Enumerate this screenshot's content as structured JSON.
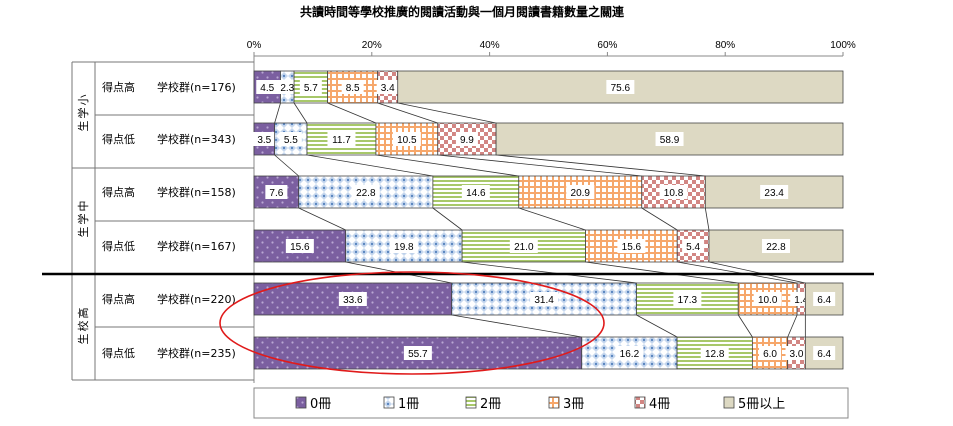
{
  "chart_data": {
    "type": "bar",
    "orientation": "horizontal",
    "stacked": "100%",
    "title": "共讀時間等學校推廣的閱讀活動與一個月閱讀書籍數量之關連",
    "x_ticks": [
      "0%",
      "20%",
      "40%",
      "60%",
      "80%",
      "100%"
    ],
    "xlim": [
      0,
      100
    ],
    "groups": [
      {
        "name": "小学生",
        "rows": [
          0,
          1
        ]
      },
      {
        "name": "中学生",
        "rows": [
          2,
          3
        ]
      },
      {
        "name": "高校生",
        "rows": [
          4,
          5
        ]
      }
    ],
    "categories": [
      {
        "label1": "得点高",
        "label2": "学校群(n=176)"
      },
      {
        "label1": "得点低",
        "label2": "学校群(n=343)"
      },
      {
        "label1": "得点高",
        "label2": "学校群(n=158)"
      },
      {
        "label1": "得点低",
        "label2": "学校群(n=167)"
      },
      {
        "label1": "得点高",
        "label2": "学校群(n=220)"
      },
      {
        "label1": "得点低",
        "label2": "学校群(n=235)"
      }
    ],
    "series": [
      {
        "name": "0冊",
        "color": "#8064a2",
        "pattern": "dots-dark",
        "values": [
          4.5,
          3.5,
          7.6,
          15.6,
          33.6,
          55.7
        ]
      },
      {
        "name": "1冊",
        "color": "#4f81bd",
        "pattern": "diamond-light",
        "values": [
          2.3,
          5.5,
          22.8,
          19.8,
          31.4,
          16.2
        ]
      },
      {
        "name": "2冊",
        "color": "#9bbb59",
        "pattern": "h-stripe",
        "values": [
          5.7,
          11.7,
          14.6,
          21.0,
          17.3,
          12.8
        ]
      },
      {
        "name": "3冊",
        "color": "#f79646",
        "pattern": "grid",
        "values": [
          8.5,
          10.5,
          20.9,
          15.6,
          10.0,
          6.0
        ]
      },
      {
        "name": "4冊",
        "color": "#c0504d",
        "pattern": "checker",
        "values": [
          3.4,
          9.9,
          10.8,
          5.4,
          1.4,
          3.0
        ]
      },
      {
        "name": "5冊以上",
        "color": "#ddd9c3",
        "pattern": "solid",
        "values": [
          75.6,
          58.9,
          23.4,
          22.8,
          6.4,
          6.4
        ]
      }
    ],
    "value_labels": [
      [
        "4.5",
        "2.3",
        "5.7",
        "8.5",
        "3.4",
        "75.6"
      ],
      [
        "3.5",
        "5.5",
        "11.7",
        "10.5",
        "9.9",
        "58.9"
      ],
      [
        "7.6",
        "22.8",
        "14.6",
        "20.9",
        "10.8",
        "23.4"
      ],
      [
        "15.6",
        "19.8",
        "21.0",
        "15.6",
        "5.4",
        "22.8"
      ],
      [
        "33.6",
        "31.4",
        "17.3",
        "10.0",
        "1.4",
        "6.4"
      ],
      [
        "55.7",
        "16.2",
        "12.8",
        "6.0",
        "3.0",
        "6.4"
      ]
    ],
    "highlight_ellipse_rows": [
      4,
      5
    ],
    "divider_between_groups": [
      "中学生",
      "高校生"
    ],
    "legend_position": "bottom"
  }
}
